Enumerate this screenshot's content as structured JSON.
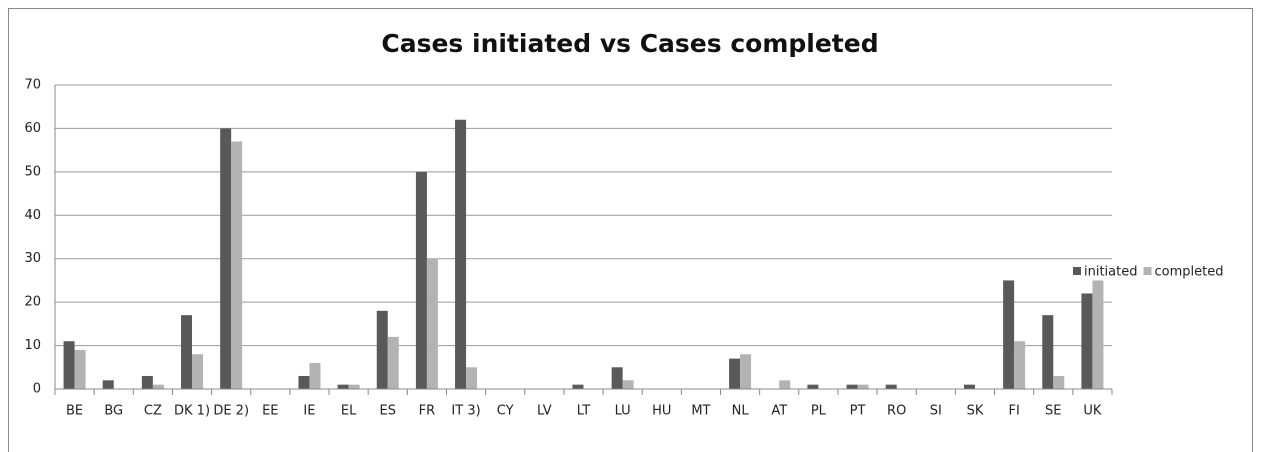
{
  "chart_data": {
    "type": "bar",
    "title": "Cases initiated vs Cases completed",
    "categories": [
      "BE",
      "BG",
      "CZ",
      "DK 1)",
      "DE 2)",
      "EE",
      "IE",
      "EL",
      "ES",
      "FR",
      "IT 3)",
      "CY",
      "LV",
      "LT",
      "LU",
      "HU",
      "MT",
      "NL",
      "AT",
      "PL",
      "PT",
      "RO",
      "SI",
      "SK",
      "FI",
      "SE",
      "UK"
    ],
    "series": [
      {
        "name": "initiated",
        "color": "#595959",
        "values": [
          11,
          2,
          3,
          17,
          60,
          0,
          3,
          1,
          18,
          50,
          62,
          0,
          0,
          1,
          5,
          0,
          0,
          7,
          0,
          1,
          1,
          1,
          0,
          1,
          25,
          17,
          22
        ]
      },
      {
        "name": "completed",
        "color": "#b3b3b3",
        "values": [
          9,
          0,
          1,
          8,
          57,
          0,
          6,
          1,
          12,
          30,
          5,
          0,
          0,
          0,
          2,
          0,
          0,
          8,
          2,
          0,
          1,
          0,
          0,
          0,
          11,
          3,
          25
        ]
      }
    ],
    "ylim": [
      0,
      70
    ],
    "yticks": [
      0,
      10,
      20,
      30,
      40,
      50,
      60,
      70
    ],
    "grid": true,
    "legend": "right"
  }
}
